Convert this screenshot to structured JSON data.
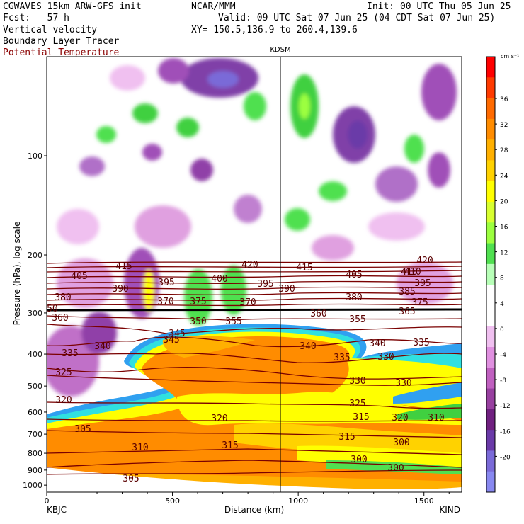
{
  "header": {
    "model": "CGWAVES 15km ARW-GFS init",
    "forecast": "Fcst:   57 h",
    "field1": "Vertical velocity",
    "field2": "Boundary Layer Tracer",
    "field3": "Potential Temperature",
    "org": "NCAR/MMM",
    "valid": "Valid: 09 UTC Sat 07 Jun 25 (04 CDT Sat 07 Jun 25)",
    "xy": "XY= 150.5,136.9 to 260.4,139.6",
    "init": "Init: 00 UTC Thu 05 Jun 25"
  },
  "chart_data": {
    "type": "heatmap",
    "title": "",
    "station_marker": "KDSM",
    "xlabel": "Distance (km)",
    "ylabel": "Pressure (hPa), log scale",
    "x_ticks": [
      "0",
      "500",
      "1000",
      "1500"
    ],
    "x_range": [
      0,
      1650
    ],
    "y_ticks": [
      "100",
      "200",
      "300",
      "400",
      "500",
      "600",
      "700",
      "800",
      "900",
      "1000"
    ],
    "y_scale": "log",
    "left_endpoint": "KBJC",
    "right_endpoint": "KIND",
    "colorbar": {
      "unit": "cm s⁻¹",
      "labels": [
        "36",
        "32",
        "28",
        "24",
        "20",
        "16",
        "12",
        "8",
        "4",
        "0",
        "-4",
        "-8",
        "-12",
        "-16",
        "-20"
      ],
      "colors": [
        "#ff0000",
        "#ff3a00",
        "#ff6a00",
        "#ff8c00",
        "#ffb000",
        "#ffd200",
        "#ffff00",
        "#d8ff30",
        "#9cff40",
        "#50e050",
        "#b8ffb8",
        "#ffffff",
        "#ffffff",
        "#f0c0f0",
        "#e090e0",
        "#c060c0",
        "#9840a0",
        "#702080",
        "#6a3aa8",
        "#7a6ad8",
        "#8888f0"
      ]
    },
    "theta_contours": {
      "levels": [
        300,
        305,
        310,
        315,
        320,
        325,
        330,
        335,
        340,
        345,
        350,
        355,
        360,
        365,
        370,
        375,
        380,
        385,
        390,
        395,
        400,
        405,
        410,
        415,
        420
      ],
      "labels": [
        "420",
        "415",
        "405",
        "410",
        "420",
        "415",
        "390",
        "395",
        "400",
        "395",
        "390",
        "405",
        "410",
        "395",
        "380",
        "370",
        "375",
        "370",
        "380",
        "385",
        "375",
        "360",
        "350",
        "355",
        "350",
        "360",
        "355",
        "365",
        "345",
        "340",
        "335",
        "340",
        "345",
        "340",
        "335",
        "330",
        "335",
        "330",
        "330",
        "325",
        "325",
        "320",
        "315",
        "320",
        "320",
        "310",
        "310",
        "315",
        "305",
        "315",
        "300",
        "305",
        "300",
        "300"
      ]
    }
  }
}
